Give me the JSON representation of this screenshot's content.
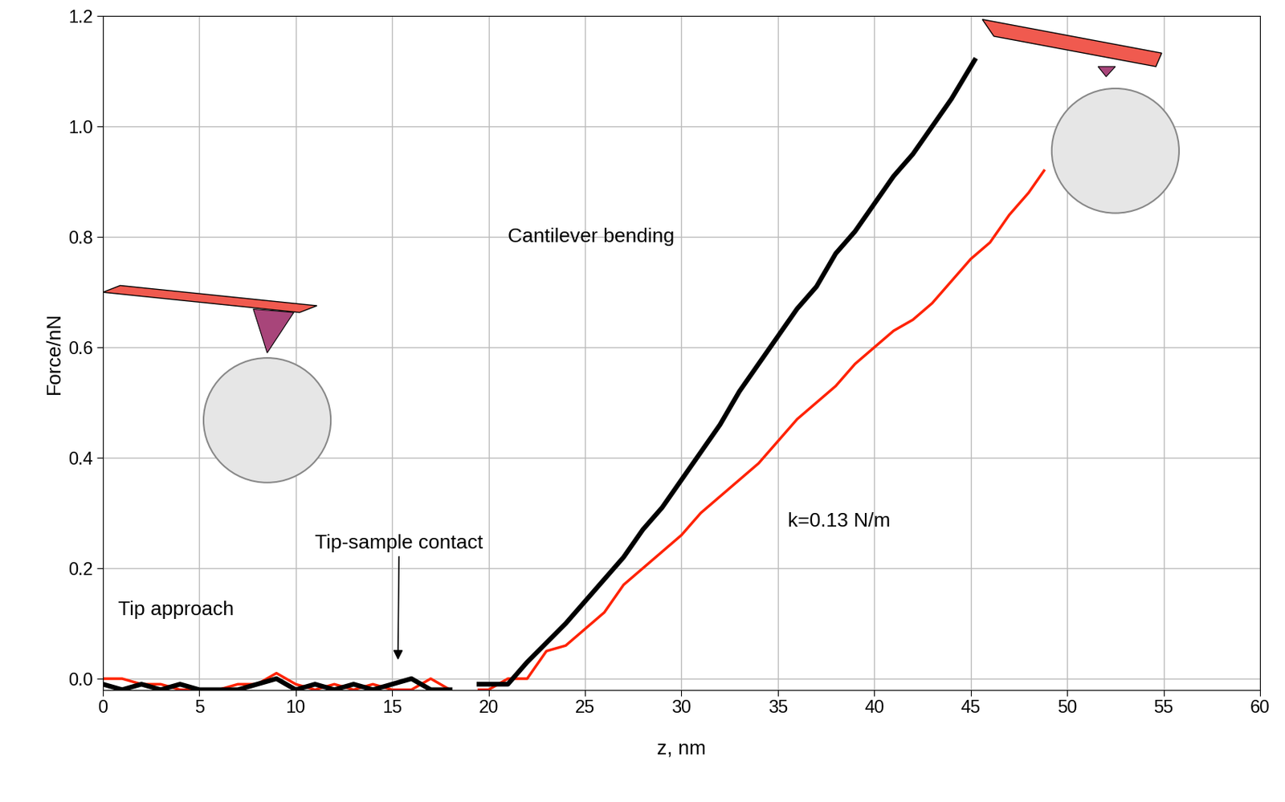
{
  "chart_data": {
    "type": "line",
    "x_label": "z, nm",
    "y_label": "Force/nN",
    "annotations": [
      "Cantilever bending",
      "Tip-sample contact",
      "Tip approach",
      "k=0.13 N/m"
    ],
    "xlim": [
      0,
      60
    ],
    "xticks": [
      0,
      5,
      10,
      15,
      20,
      25,
      30,
      35,
      40,
      45,
      50,
      55,
      60
    ],
    "ylim": [
      -0.02,
      1.2
    ],
    "yticks": [
      0.0,
      0.2,
      0.4,
      0.6,
      0.8,
      1.0,
      1.2
    ],
    "grid": true,
    "series": [
      {
        "color": "#000000",
        "x": [
          0,
          1,
          2,
          3,
          4,
          5,
          6,
          7,
          8,
          9,
          10,
          11,
          12,
          13,
          14,
          15,
          16,
          17,
          18,
          19,
          19.5,
          20,
          21,
          22,
          23,
          24,
          25,
          26,
          27,
          28,
          29,
          30,
          31,
          32,
          33,
          34,
          35,
          36,
          37,
          38,
          39,
          40,
          41,
          42,
          43,
          44,
          45.2
        ],
        "values": [
          -0.01,
          -0.02,
          -0.01,
          -0.02,
          -0.01,
          -0.02,
          -0.02,
          -0.02,
          -0.01,
          0.0,
          -0.02,
          -0.01,
          -0.02,
          -0.01,
          -0.02,
          -0.01,
          0.0,
          -0.02,
          -0.02,
          null,
          -0.01,
          -0.01,
          -0.01,
          0.03,
          0.065,
          0.1,
          0.14,
          0.18,
          0.22,
          0.27,
          0.31,
          0.36,
          0.41,
          0.46,
          0.52,
          0.57,
          0.62,
          0.67,
          0.71,
          0.77,
          0.81,
          0.86,
          0.91,
          0.95,
          1.0,
          1.05,
          1.12
        ]
      },
      {
        "color": "#ff2200",
        "x": [
          0,
          1,
          2,
          3,
          4,
          5,
          6,
          7,
          8,
          9,
          10,
          11,
          12,
          13,
          14,
          15,
          16,
          17,
          18,
          19,
          19.5,
          20,
          21,
          22,
          23,
          24,
          25,
          26,
          27,
          28,
          29,
          30,
          31,
          32,
          33,
          34,
          35,
          36,
          37,
          38,
          39,
          40,
          41,
          42,
          43,
          44,
          45,
          46,
          47,
          48,
          48.8
        ],
        "values": [
          0.0,
          0.0,
          -0.01,
          -0.01,
          -0.02,
          -0.02,
          -0.02,
          -0.01,
          -0.01,
          0.01,
          -0.01,
          -0.02,
          -0.01,
          -0.02,
          -0.01,
          -0.02,
          -0.02,
          0.0,
          -0.02,
          null,
          -0.02,
          -0.02,
          0.0,
          0.0,
          0.05,
          0.06,
          0.09,
          0.12,
          0.17,
          0.2,
          0.23,
          0.26,
          0.3,
          0.33,
          0.36,
          0.39,
          0.43,
          0.47,
          0.5,
          0.53,
          0.57,
          0.6,
          0.63,
          0.65,
          0.68,
          0.72,
          0.76,
          0.79,
          0.84,
          0.88,
          0.92
        ]
      }
    ]
  }
}
